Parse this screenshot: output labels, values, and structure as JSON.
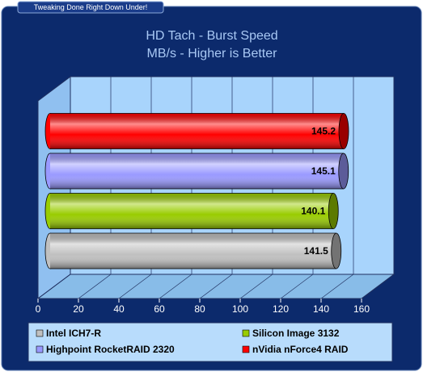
{
  "banner": "Tweaking Done Right Down Under!",
  "chart_data": {
    "type": "bar",
    "orientation": "horizontal",
    "title": "HD Tach - Burst Speed",
    "subtitle": "MB/s - Higher is Better",
    "series": [
      {
        "name": "Intel ICH7-R",
        "color": "#c0c0c0",
        "values": [
          141.5
        ]
      },
      {
        "name": "Silicon Image 3132",
        "color": "#99cc00",
        "values": [
          140.1
        ]
      },
      {
        "name": "Highpoint RocketRAID 2320",
        "color": "#9999ff",
        "values": [
          145.1
        ]
      },
      {
        "name": "nVidia nForce4 RAID",
        "color": "#ff0000",
        "values": [
          145.2
        ]
      }
    ],
    "xlim": [
      0,
      160
    ],
    "xticks": [
      0,
      20,
      40,
      60,
      80,
      100,
      120,
      140,
      160
    ],
    "grid": true
  }
}
